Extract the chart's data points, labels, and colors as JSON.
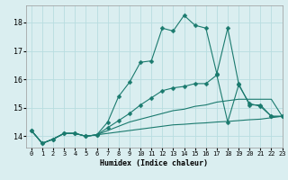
{
  "xlabel": "Humidex (Indice chaleur)",
  "xlim": [
    -0.5,
    23
  ],
  "ylim": [
    13.6,
    18.6
  ],
  "bg_color": "#daeef0",
  "grid_color": "#b8dde0",
  "line_color": "#1a7a6e",
  "yticks": [
    14,
    15,
    16,
    17,
    18
  ],
  "xticks": [
    0,
    1,
    2,
    3,
    4,
    5,
    6,
    7,
    8,
    9,
    10,
    11,
    12,
    13,
    14,
    15,
    16,
    17,
    18,
    19,
    20,
    21,
    22,
    23
  ],
  "series": [
    [
      14.2,
      13.75,
      13.9,
      14.1,
      14.1,
      14.0,
      14.05,
      14.5,
      15.4,
      15.9,
      16.6,
      16.65,
      17.8,
      17.7,
      18.25,
      17.9,
      17.8,
      16.2,
      17.8,
      15.85,
      15.1,
      15.1,
      14.7,
      14.7
    ],
    [
      14.2,
      13.75,
      13.9,
      14.1,
      14.1,
      14.0,
      14.05,
      14.3,
      14.55,
      14.8,
      15.1,
      15.35,
      15.6,
      15.7,
      15.75,
      15.85,
      15.85,
      16.15,
      14.5,
      15.8,
      15.15,
      15.05,
      14.7,
      14.7
    ],
    [
      14.2,
      13.75,
      13.9,
      14.1,
      14.1,
      14.0,
      14.05,
      14.2,
      14.35,
      14.5,
      14.6,
      14.7,
      14.8,
      14.9,
      14.95,
      15.05,
      15.1,
      15.2,
      15.25,
      15.3,
      15.3,
      15.3,
      15.3,
      14.7
    ],
    [
      14.2,
      13.75,
      13.9,
      14.1,
      14.1,
      14.0,
      14.05,
      14.1,
      14.15,
      14.2,
      14.25,
      14.3,
      14.35,
      14.4,
      14.42,
      14.45,
      14.47,
      14.5,
      14.52,
      14.55,
      14.58,
      14.6,
      14.65,
      14.7
    ]
  ],
  "marker_on": [
    true,
    true,
    false,
    false
  ]
}
